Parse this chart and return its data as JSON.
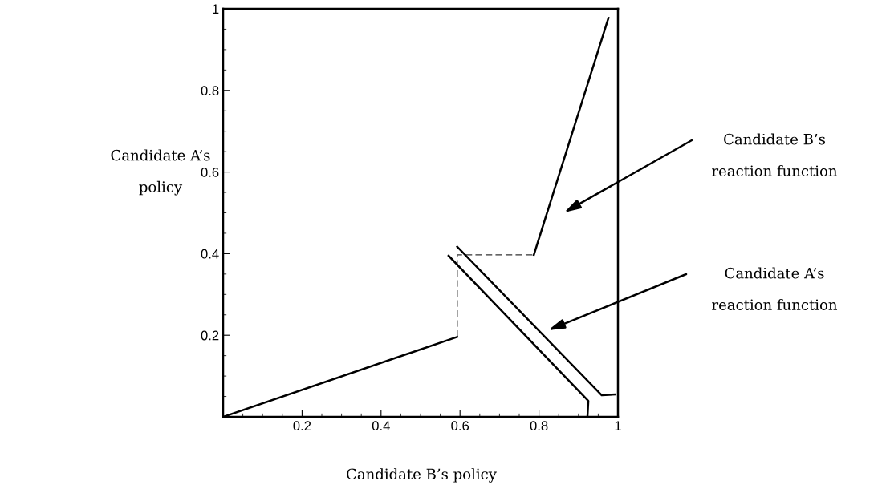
{
  "chart_data": {
    "type": "line",
    "xlabel": "Candidate B’s policy",
    "ylabel": "Candidate A’s\npolicy",
    "xlim": [
      0,
      1
    ],
    "ylim": [
      0,
      1
    ],
    "xticks": [
      0.2,
      0.4,
      0.6,
      0.8,
      1
    ],
    "yticks": [
      0.2,
      0.4,
      0.6,
      0.8,
      1
    ],
    "grid": false,
    "legend": false,
    "marker": "none",
    "series": [
      {
        "color": "#000000",
        "line_style": "solid",
        "x": [
          0,
          0.593
        ],
        "values": [
          0,
          0.196
        ]
      },
      {
        "color": "#333333",
        "line_style": "dashed",
        "x": [
          0.593,
          0.593,
          0.787
        ],
        "values": [
          0.196,
          0.397,
          0.397
        ]
      },
      {
        "color": "#000000",
        "line_style": "solid",
        "x": [
          0.787,
          0.976
        ],
        "values": [
          0.397,
          0.978
        ]
      },
      {
        "color": "#000000",
        "line_style": "solid",
        "x": [
          0.571,
          0.925,
          0.923
        ],
        "values": [
          0.395,
          0.039,
          0.004
        ]
      },
      {
        "color": "#000000",
        "line_style": "solid",
        "x": [
          0.593,
          0.959,
          0.992
        ],
        "values": [
          0.417,
          0.053,
          0.055
        ]
      }
    ],
    "annotations": [
      "Candidate B’s\nreaction function",
      "Candidate A’s\nreaction function"
    ]
  }
}
